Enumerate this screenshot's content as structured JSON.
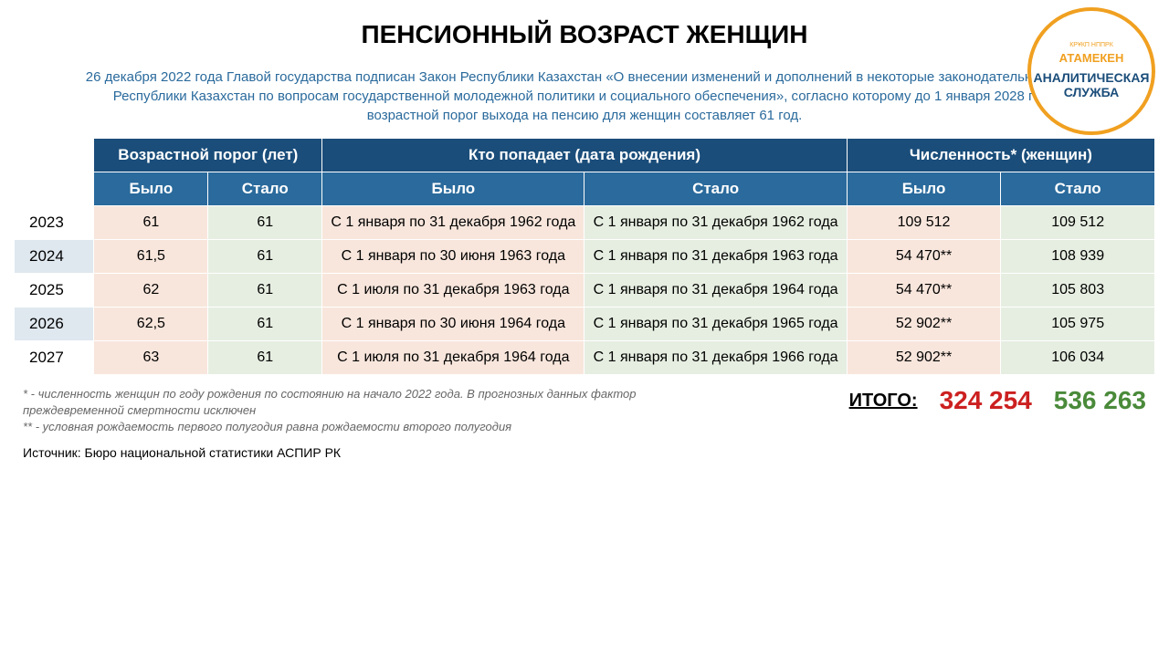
{
  "logo": {
    "top_line": "КРҰКП     НППРК",
    "brand": "АТАМЕКЕН",
    "service": "АНАЛИТИЧЕСКАЯ СЛУЖБА"
  },
  "title": "ПЕНСИОННЫЙ ВОЗРАСТ ЖЕНЩИН",
  "description": "26 декабря 2022 года Главой государства подписан Закон Республики Казахстан «О внесении изменений и дополнений в некоторые законодательные акты Республики Казахстан по вопросам государственной молодежной политики и социального обеспечения», согласно которому до 1 января 2028 года возрастной порог выхода на пенсию для женщин составляет 61 год.",
  "table": {
    "header_groups": [
      "Возрастной порог (лет)",
      "Кто попадает (дата рождения)",
      "Численность* (женщин)"
    ],
    "sub_headers": [
      "Было",
      "Стало",
      "Было",
      "Стало",
      "Было",
      "Стало"
    ],
    "rows": [
      {
        "year": "2023",
        "alt": false,
        "age_was": "61",
        "age_now": "61",
        "range_was": "С 1 января по 31 декабря 1962 года",
        "range_now": "С 1 января по 31 декабря 1962 года",
        "count_was": "109 512",
        "count_now": "109 512"
      },
      {
        "year": "2024",
        "alt": true,
        "age_was": "61,5",
        "age_now": "61",
        "range_was": "С 1 января по 30 июня 1963 года",
        "range_now": "С 1 января по 31 декабря 1963 года",
        "count_was": "54 470**",
        "count_now": "108 939"
      },
      {
        "year": "2025",
        "alt": false,
        "age_was": "62",
        "age_now": "61",
        "range_was": "С 1 июля по 31 декабря 1963 года",
        "range_now": "С 1 января по 31 декабря 1964 года",
        "count_was": "54 470**",
        "count_now": "105 803"
      },
      {
        "year": "2026",
        "alt": true,
        "age_was": "62,5",
        "age_now": "61",
        "range_was": "С 1 января по 30 июня 1964 года",
        "range_now": "С 1 января по 31 декабря 1965 года",
        "count_was": "52 902**",
        "count_now": "105 975"
      },
      {
        "year": "2027",
        "alt": false,
        "age_was": "63",
        "age_now": "61",
        "range_was": "С 1 июля по 31 декабря 1964 года",
        "range_now": "С 1 января по 31 декабря 1966 года",
        "count_was": "52 902**",
        "count_now": "106 034"
      }
    ],
    "col_widths": {
      "year": "7%",
      "age": "10%",
      "range": "23%",
      "count": "13.5%"
    }
  },
  "footnotes": {
    "line1": "* - численность женщин по году рождения по состоянию на начало 2022 года. В прогнозных данных фактор преждевременной смертности исключен",
    "line2": "** - условная рождаемость первого полугодия равна рождаемости второго полугодия"
  },
  "totals": {
    "label": "ИТОГО:",
    "was": "324 254",
    "now": "536 263"
  },
  "source": "Источник: Бюро национальной статистики АСПИР РК",
  "colors": {
    "header_dark": "#1a4d7a",
    "header_mid": "#2a6a9c",
    "was_cell": "#f8e6dc",
    "now_cell": "#e6eee1",
    "year_alt": "#dfe8ef",
    "total_was": "#cc2020",
    "total_now": "#4a8a3a",
    "logo_orange": "#f0a020",
    "desc_color": "#2a6a9c"
  }
}
